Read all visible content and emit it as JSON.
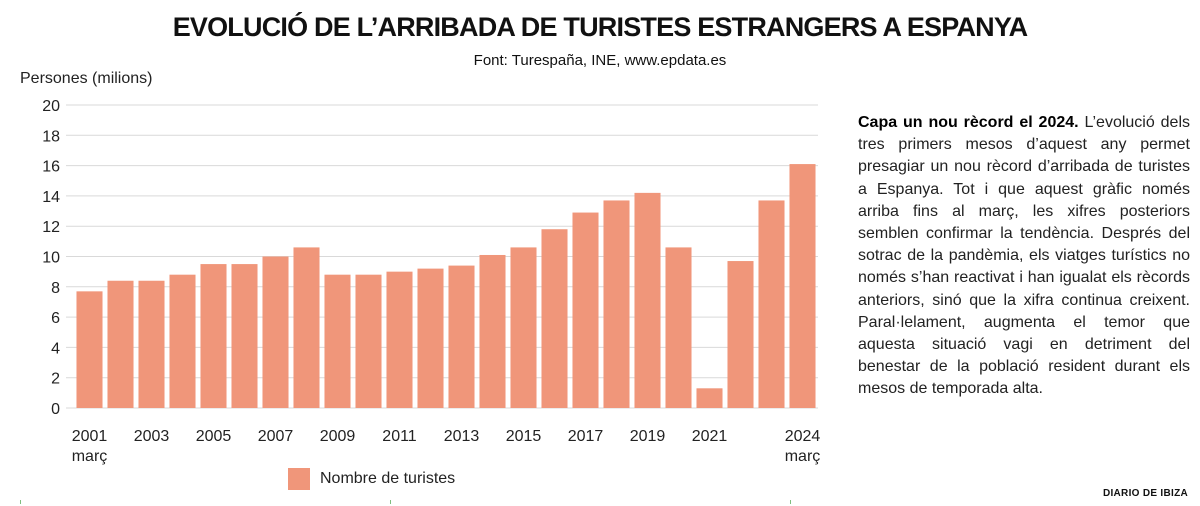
{
  "header": {
    "title": "EVOLUCIÓ DE L’ARRIBADA DE TURISTES ESTRANGERS A ESPANYA",
    "source": "Font: Turespaña, INE, www.epdata.es"
  },
  "chart_data": {
    "type": "bar",
    "title": "EVOLUCIÓ DE L’ARRIBADA DE TURISTES ESTRANGERS A ESPANYA",
    "subtitle": "Font: Turespaña, INE, www.epdata.es",
    "ylabel": "Persones (milions)",
    "xlabel": "",
    "ylim": [
      0,
      20
    ],
    "yticks": [
      0,
      2,
      4,
      6,
      8,
      10,
      12,
      14,
      16,
      18,
      20
    ],
    "grid": true,
    "color": "#f0967a",
    "categories": [
      "2001",
      "2002",
      "2003",
      "2004",
      "2005",
      "2006",
      "2007",
      "2008",
      "2009",
      "2010",
      "2011",
      "2012",
      "2013",
      "2014",
      "2015",
      "2016",
      "2017",
      "2018",
      "2019",
      "2020",
      "2021",
      "2022",
      "2023",
      "2024"
    ],
    "series": [
      {
        "name": "Nombre de turistes",
        "values": [
          7.7,
          8.4,
          8.4,
          8.8,
          9.5,
          9.5,
          10.0,
          10.6,
          8.8,
          8.8,
          9.0,
          9.2,
          9.4,
          10.1,
          10.6,
          11.8,
          12.9,
          13.7,
          14.2,
          10.6,
          1.3,
          9.7,
          13.7,
          16.1
        ]
      }
    ],
    "xtick_labels": [
      {
        "category": "2001",
        "lines": [
          "2001",
          "març"
        ]
      },
      {
        "category": "2003",
        "lines": [
          "2003"
        ]
      },
      {
        "category": "2005",
        "lines": [
          "2005"
        ]
      },
      {
        "category": "2007",
        "lines": [
          "2007"
        ]
      },
      {
        "category": "2009",
        "lines": [
          "2009"
        ]
      },
      {
        "category": "2011",
        "lines": [
          "2011"
        ]
      },
      {
        "category": "2013",
        "lines": [
          "2013"
        ]
      },
      {
        "category": "2015",
        "lines": [
          "2015"
        ]
      },
      {
        "category": "2017",
        "lines": [
          "2017"
        ]
      },
      {
        "category": "2019",
        "lines": [
          "2019"
        ]
      },
      {
        "category": "2021",
        "lines": [
          "2021"
        ]
      },
      {
        "category": "2024",
        "lines": [
          "2024",
          "març"
        ]
      }
    ],
    "legend": {
      "label": "Nombre de turistes",
      "position": "bottom"
    }
  },
  "sidebar": {
    "lead": "Capa un nou rècord el 2024.",
    "body": "L’evolució dels tres primers mesos d’aquest any permet presagiar un nou rècord d’arribada de turistes a Espanya. Tot i que aquest gràfic només arriba fins al març, les xifres posteriors semblen confirmar la tendència. Després del sotrac de la pandèmia, els viatges turístics no només s’han reactivat i han igualat els rècords anteriors, sinó que la xifra continua creixent. Paral·lelament, augmenta el temor que aquesta situació vagi en detriment del benestar de la població resident durant els mesos de temporada alta."
  },
  "footer": {
    "brand": "DIARIO DE IBIZA"
  }
}
